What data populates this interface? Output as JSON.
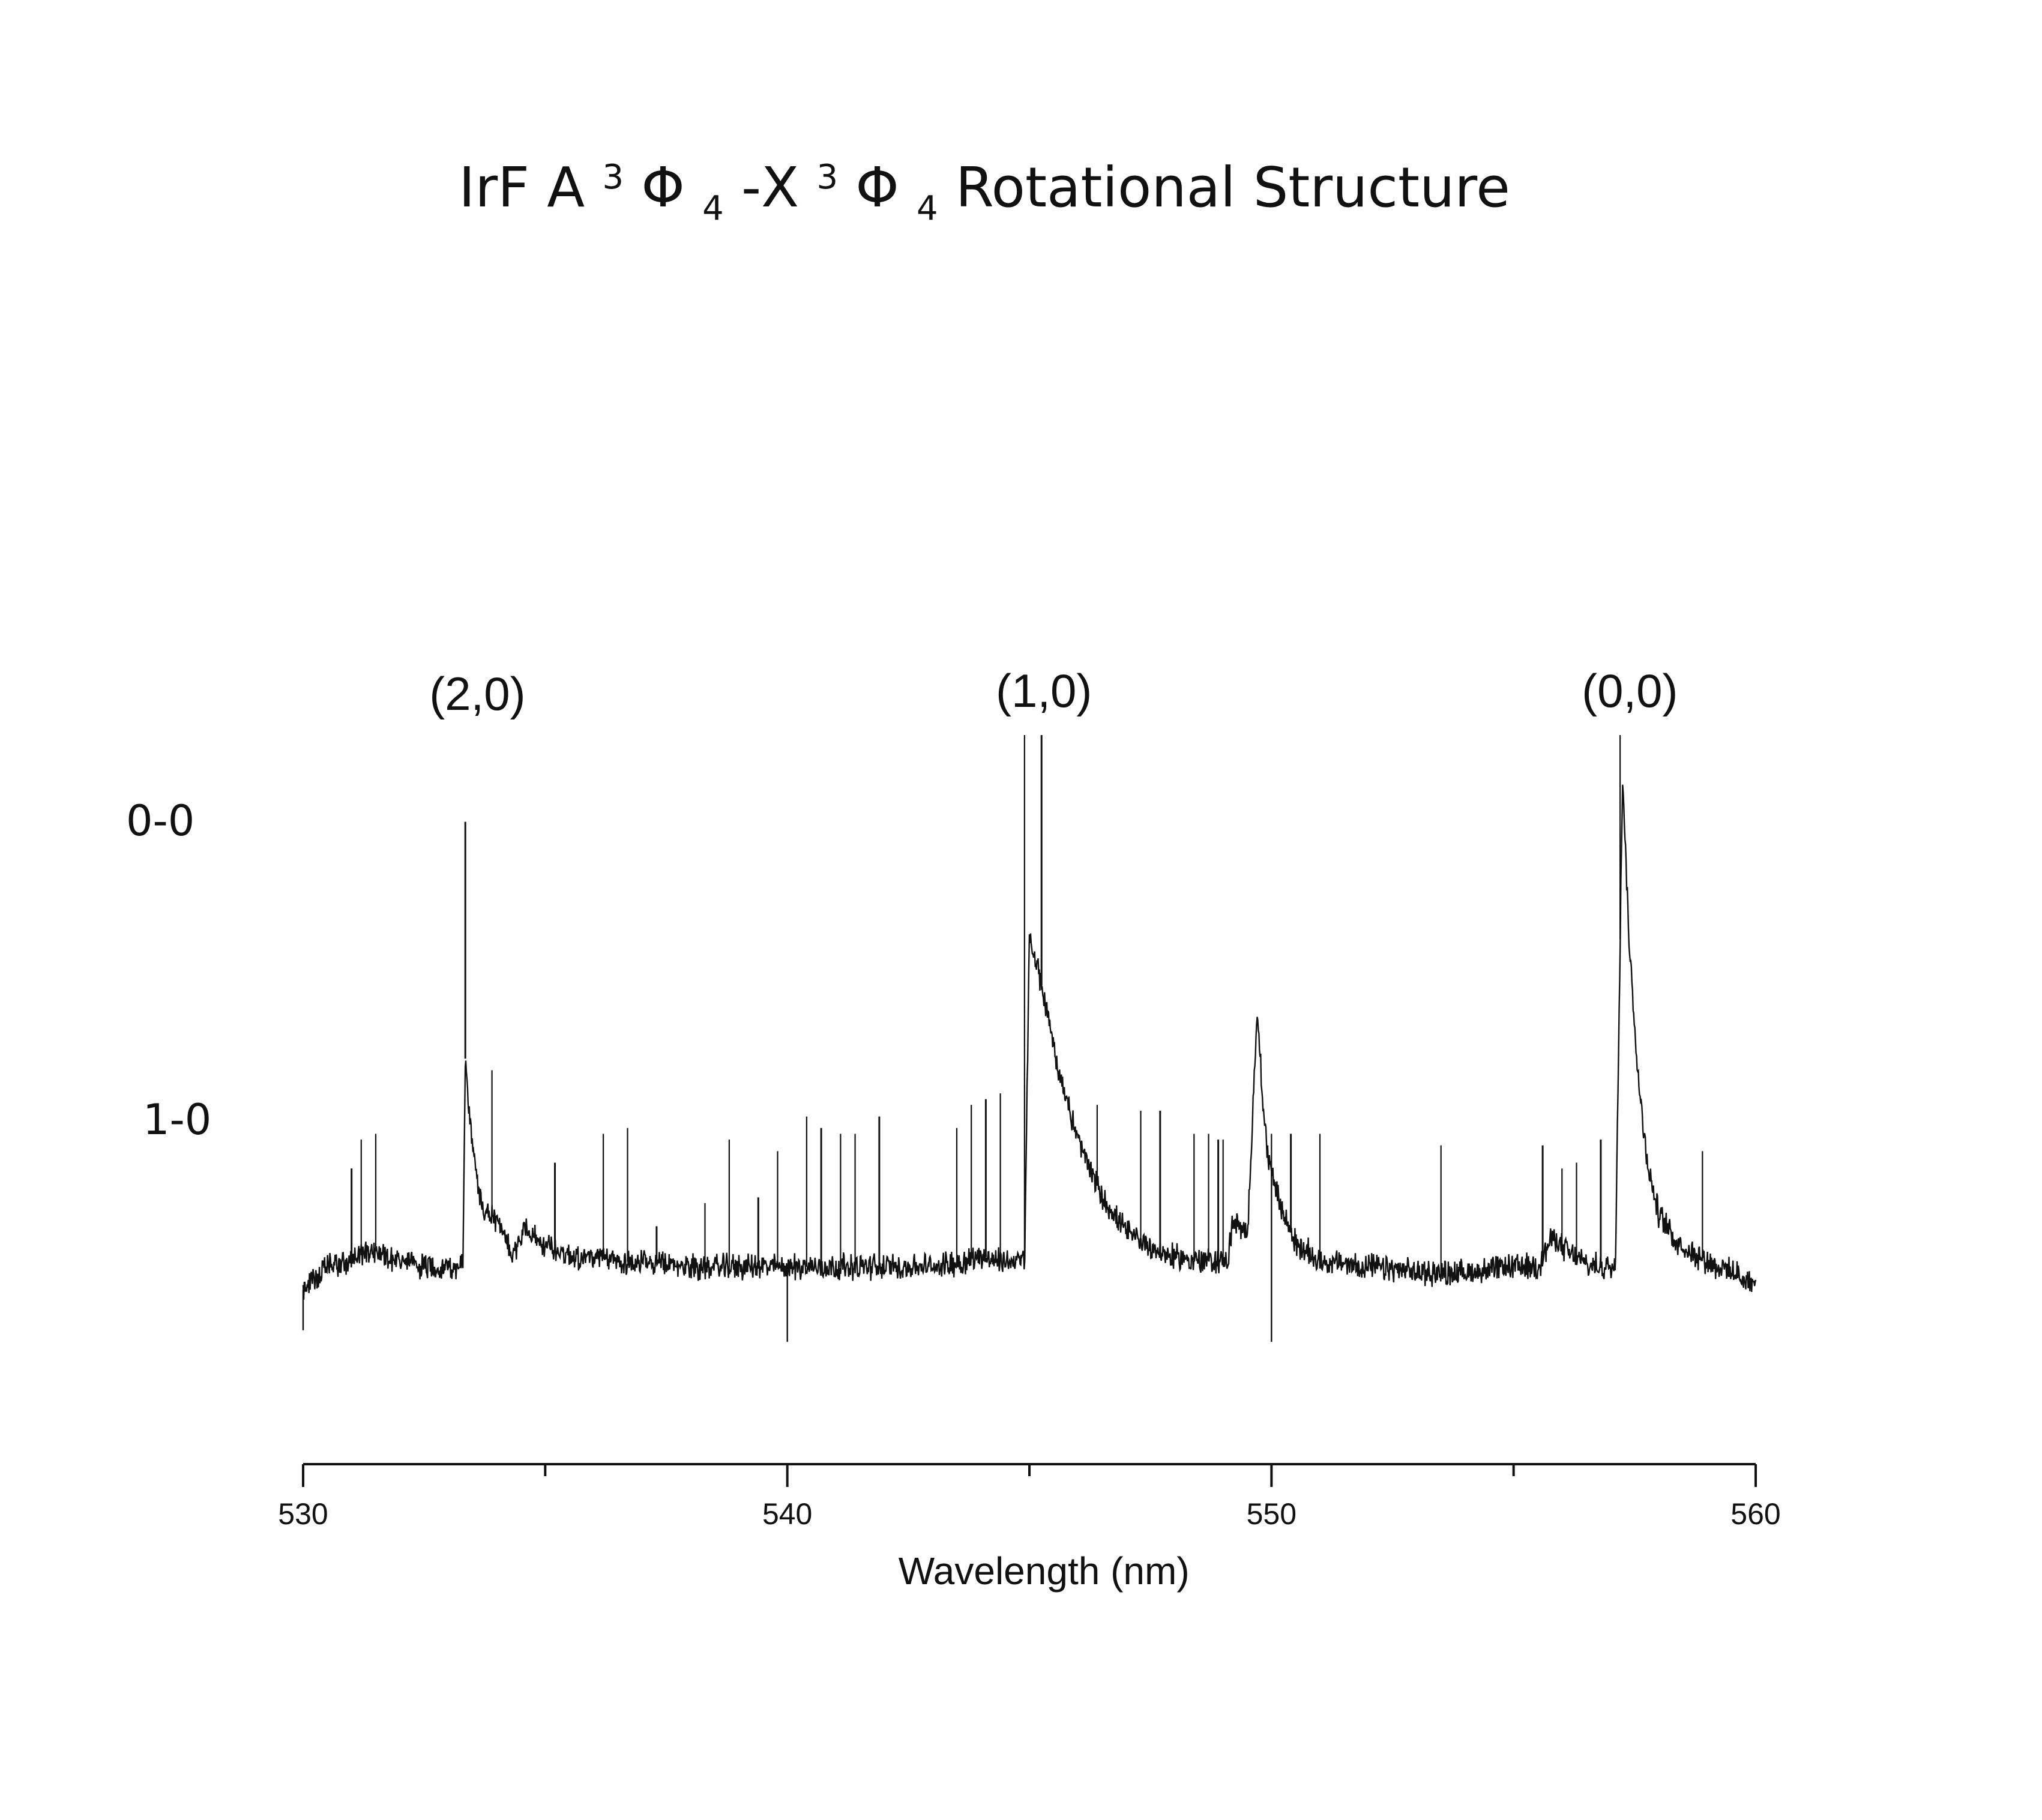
{
  "chart_data": {
    "type": "line",
    "title": {
      "prefix": "IrF A",
      "sup1": "3",
      "phi1": "Φ",
      "sub1": "4",
      "dash": "-X",
      "sup2": "3",
      "phi2": "Φ",
      "sub2": "4",
      "suffix": " Rotational Structure"
    },
    "xlabel": "Wavelength (nm)",
    "ylabel": "",
    "xlim": [
      530,
      560
    ],
    "ylim": [
      0,
      1
    ],
    "x_ticks": [
      "530",
      "540",
      "550",
      "560"
    ],
    "x_tick_values": [
      530,
      540,
      550,
      560
    ],
    "x_minor_tick_values": [
      535,
      545,
      555
    ],
    "grid": false,
    "legend": "none",
    "line_color": "#111111",
    "band_annotations": [
      {
        "text": "(2,0)",
        "x": 533.6
      },
      {
        "text": "(1,0)",
        "x": 545.3
      },
      {
        "text": "(0,0)",
        "x": 557.4
      }
    ],
    "side_labels": [
      {
        "text": "0-0",
        "y": 0.87
      },
      {
        "text": "1-0",
        "y": 0.35
      }
    ],
    "baseline": [
      [
        530.0,
        0.04
      ],
      [
        530.5,
        0.08
      ],
      [
        531.0,
        0.09
      ],
      [
        531.4,
        0.11
      ],
      [
        532.0,
        0.09
      ],
      [
        532.5,
        0.08
      ],
      [
        533.3,
        0.08
      ],
      [
        533.35,
        0.44
      ],
      [
        533.5,
        0.28
      ],
      [
        533.7,
        0.18
      ],
      [
        534.0,
        0.16
      ],
      [
        534.3,
        0.1
      ],
      [
        534.6,
        0.15
      ],
      [
        534.9,
        0.12
      ],
      [
        535.5,
        0.1
      ],
      [
        536.5,
        0.09
      ],
      [
        538.0,
        0.08
      ],
      [
        539.5,
        0.08
      ],
      [
        540.5,
        0.08
      ],
      [
        542.0,
        0.08
      ],
      [
        543.0,
        0.08
      ],
      [
        543.7,
        0.09
      ],
      [
        544.0,
        0.1
      ],
      [
        544.3,
        0.09
      ],
      [
        544.9,
        0.09
      ],
      [
        545.0,
        0.65
      ],
      [
        545.3,
        0.55
      ],
      [
        545.6,
        0.42
      ],
      [
        546.0,
        0.3
      ],
      [
        546.5,
        0.2
      ],
      [
        547.0,
        0.14
      ],
      [
        547.8,
        0.1
      ],
      [
        548.5,
        0.09
      ],
      [
        549.1,
        0.09
      ],
      [
        549.2,
        0.16
      ],
      [
        549.5,
        0.13
      ],
      [
        549.7,
        0.52
      ],
      [
        549.9,
        0.28
      ],
      [
        550.2,
        0.18
      ],
      [
        550.5,
        0.12
      ],
      [
        551.0,
        0.09
      ],
      [
        552.0,
        0.08
      ],
      [
        553.0,
        0.07
      ],
      [
        554.0,
        0.07
      ],
      [
        555.0,
        0.08
      ],
      [
        555.5,
        0.08
      ],
      [
        555.8,
        0.13
      ],
      [
        556.2,
        0.1
      ],
      [
        556.6,
        0.08
      ],
      [
        557.1,
        0.08
      ],
      [
        557.25,
        0.93
      ],
      [
        557.4,
        0.62
      ],
      [
        557.6,
        0.38
      ],
      [
        557.8,
        0.24
      ],
      [
        558.0,
        0.17
      ],
      [
        558.4,
        0.12
      ],
      [
        559.0,
        0.09
      ],
      [
        559.5,
        0.07
      ],
      [
        560.0,
        0.05
      ]
    ],
    "sharp_lines": [
      [
        531.0,
        0.25
      ],
      [
        531.2,
        0.3
      ],
      [
        531.5,
        0.31
      ],
      [
        533.35,
        0.85
      ],
      [
        533.9,
        0.42
      ],
      [
        534.4,
        0.12
      ],
      [
        535.2,
        0.26
      ],
      [
        536.2,
        0.31
      ],
      [
        536.7,
        0.32
      ],
      [
        537.3,
        0.15
      ],
      [
        538.3,
        0.19
      ],
      [
        538.8,
        0.3
      ],
      [
        539.4,
        0.2
      ],
      [
        539.8,
        0.28
      ],
      [
        540.4,
        0.34
      ],
      [
        540.7,
        0.32
      ],
      [
        541.1,
        0.31
      ],
      [
        541.4,
        0.31
      ],
      [
        541.9,
        0.34
      ],
      [
        543.5,
        0.32
      ],
      [
        543.8,
        0.36
      ],
      [
        544.1,
        0.37
      ],
      [
        544.4,
        0.38
      ],
      [
        544.9,
        1.0
      ],
      [
        545.25,
        1.0
      ],
      [
        546.4,
        0.36
      ],
      [
        547.3,
        0.35
      ],
      [
        547.7,
        0.35
      ],
      [
        548.4,
        0.31
      ],
      [
        548.7,
        0.31
      ],
      [
        548.9,
        0.3
      ],
      [
        549.0,
        0.3
      ],
      [
        550.0,
        0.31
      ],
      [
        550.4,
        0.31
      ],
      [
        551.0,
        0.31
      ],
      [
        553.5,
        0.29
      ],
      [
        555.6,
        0.29
      ],
      [
        556.0,
        0.25
      ],
      [
        556.3,
        0.26
      ],
      [
        556.8,
        0.3
      ],
      [
        557.2,
        1.0
      ],
      [
        558.9,
        0.28
      ]
    ],
    "dips": [
      [
        540.0,
        -0.05
      ],
      [
        550.0,
        -0.05
      ],
      [
        530.0,
        -0.03
      ]
    ]
  }
}
